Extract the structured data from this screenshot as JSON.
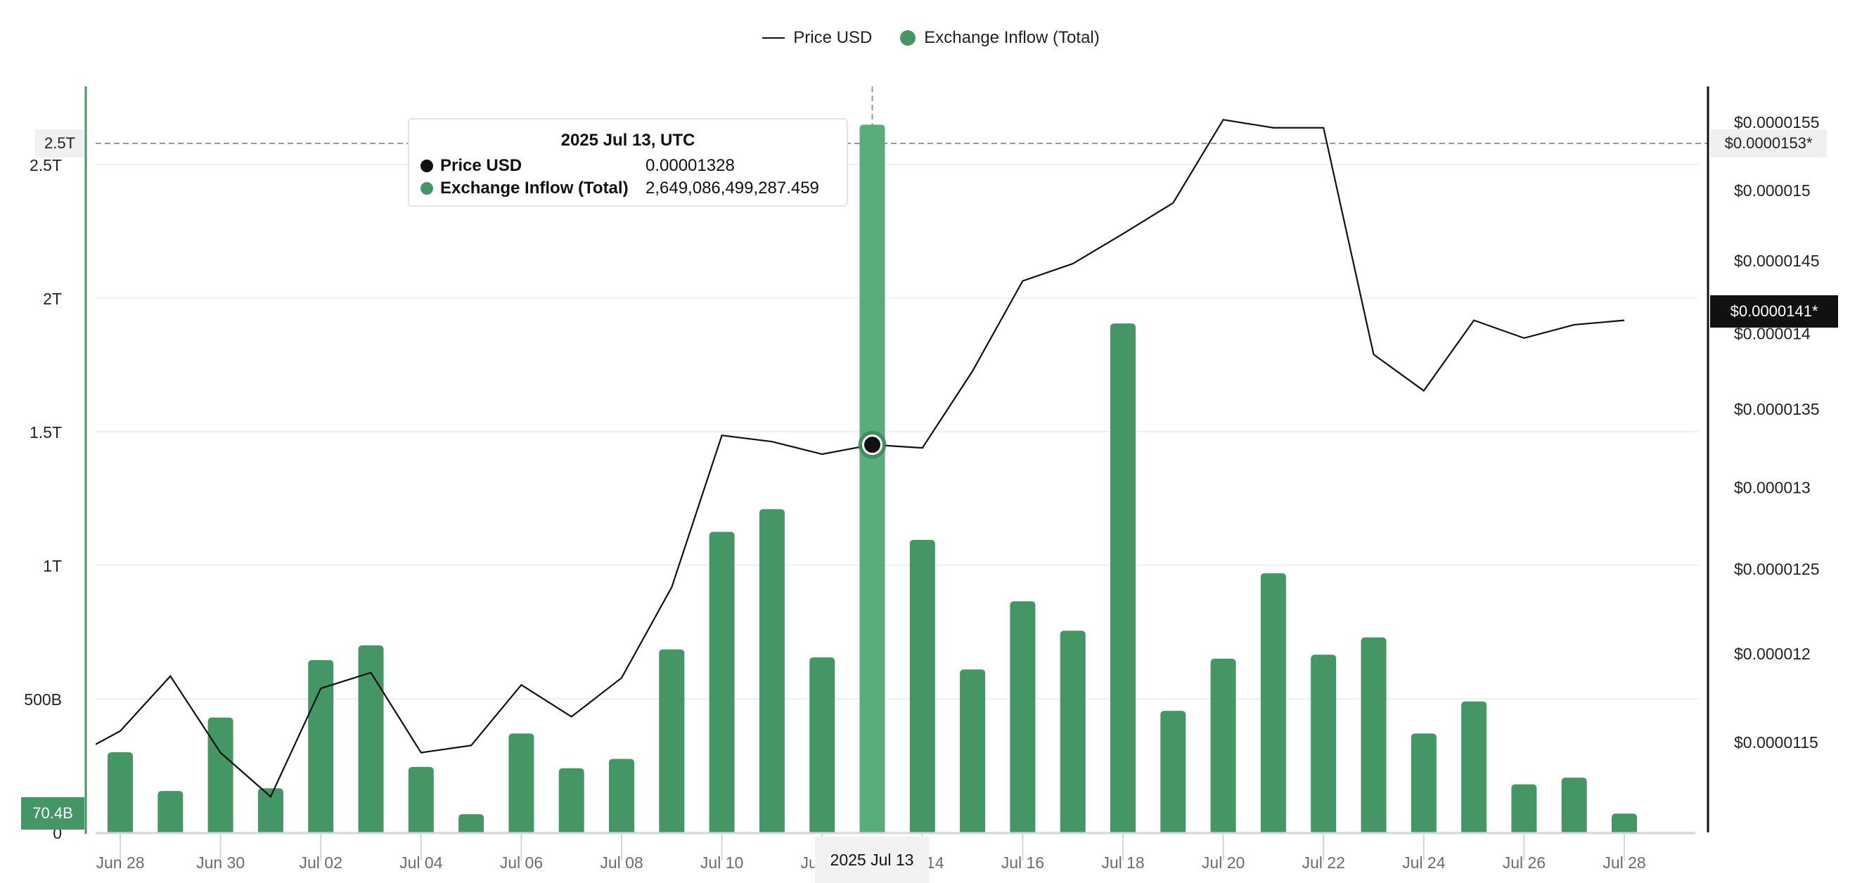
{
  "legend": [
    {
      "label": "Price USD",
      "color": "#111111",
      "marker": "line"
    },
    {
      "label": "Exchange Inflow (Total)",
      "color": "#459665",
      "marker": "dot"
    }
  ],
  "tooltip": {
    "title": "2025 Jul 13, UTC",
    "rows": [
      {
        "label": "Price USD",
        "value": "0.00001328",
        "color": "#111111"
      },
      {
        "label": "Exchange Inflow (Total)",
        "value": "2,649,086,499,287.459",
        "color": "#459665"
      }
    ]
  },
  "crosshair": {
    "left_label": "2.5T",
    "right_label": "$0.0000153*",
    "x_label": "2025 Jul 13"
  },
  "markers": {
    "left_last": "70.4B",
    "right_last": "$0.0000141*"
  },
  "chart_data": {
    "type": "bar+line",
    "categories": [
      "Jun 28",
      "Jun 29",
      "Jun 30",
      "Jul 01",
      "Jul 02",
      "Jul 03",
      "Jul 04",
      "Jul 05",
      "Jul 06",
      "Jul 07",
      "Jul 08",
      "Jul 09",
      "Jul 10",
      "Jul 11",
      "Jul 12",
      "Jul 13",
      "Jul 14",
      "Jul 15",
      "Jul 16",
      "Jul 17",
      "Jul 18",
      "Jul 19",
      "Jul 20",
      "Jul 21",
      "Jul 22",
      "Jul 23",
      "Jul 24",
      "Jul 25",
      "Jul 26",
      "Jul 27",
      "Jul 28"
    ],
    "x_tick_labels": [
      "Jun 28",
      "Jun 30",
      "Jul 02",
      "Jul 04",
      "Jul 06",
      "Jul 08",
      "Jul 10",
      "Jul 12",
      "Jul 14",
      "Jul 16",
      "Jul 18",
      "Jul 20",
      "Jul 22",
      "Jul 24",
      "Jul 26",
      "Jul 28"
    ],
    "series": [
      {
        "name": "Exchange Inflow (Total)",
        "type": "bar",
        "axis": "left",
        "color": "#459665",
        "highlight_color": "#58ad7a",
        "values": [
          300000000000,
          155000000000,
          430000000000,
          165000000000,
          645000000000,
          700000000000,
          245000000000,
          68000000000,
          370000000000,
          240000000000,
          275000000000,
          685000000000,
          1125000000000,
          1210000000000,
          655000000000,
          2649086499287.459,
          1095000000000,
          610000000000,
          865000000000,
          755000000000,
          1905000000000,
          455000000000,
          650000000000,
          970000000000,
          665000000000,
          730000000000,
          370000000000,
          490000000000,
          180000000000,
          205000000000,
          70400000000
        ]
      },
      {
        "name": "Price USD",
        "type": "line",
        "axis": "right",
        "color": "#111111",
        "previous_value": 1.142e-05,
        "values": [
          1.157e-05,
          1.188e-05,
          1.145e-05,
          1.121e-05,
          1.181e-05,
          1.19e-05,
          1.145e-05,
          1.149e-05,
          1.183e-05,
          1.165e-05,
          1.187e-05,
          1.24e-05,
          1.334e-05,
          1.33e-05,
          1.322e-05,
          1.328e-05,
          1.326e-05,
          1.376e-05,
          1.437e-05,
          1.449e-05,
          1.47e-05,
          1.492e-05,
          1.553e-05,
          1.547e-05,
          1.547e-05,
          1.387e-05,
          1.363e-05,
          1.41e-05,
          1.398e-05,
          1.407e-05,
          1.41e-05
        ]
      }
    ],
    "left_axis": {
      "ticks": [
        0,
        500000000000,
        1000000000000,
        1500000000000,
        2000000000000,
        2500000000000
      ],
      "tick_labels": [
        "0",
        "500B",
        "1T",
        "1.5T",
        "2T",
        "2.5T"
      ],
      "color": "#459665"
    },
    "right_axis": {
      "scale": "log",
      "ticks": [
        1.15e-05,
        1.2e-05,
        1.25e-05,
        1.3e-05,
        1.35e-05,
        1.4e-05,
        1.45e-05,
        1.5e-05,
        1.55e-05
      ],
      "tick_labels": [
        "$0.0000115",
        "$0.000012",
        "$0.0000125",
        "$0.000013",
        "$0.0000135",
        "$0.000014",
        "$0.0000145",
        "$0.000015",
        "$0.0000155"
      ],
      "color": "#111111"
    },
    "hover_category": "Jul 13",
    "grid": true,
    "legend_position": "top"
  }
}
